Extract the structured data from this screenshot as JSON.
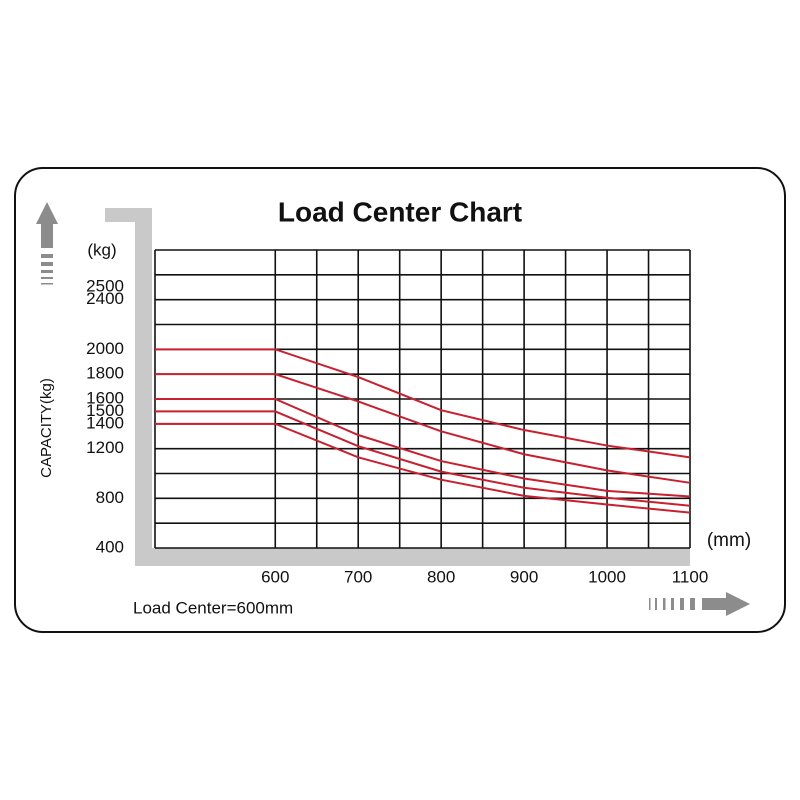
{
  "chart_data": {
    "type": "line",
    "title": "Load Center Chart",
    "y_label": "CAPACITY(kg)",
    "y_unit": "(kg)",
    "x_unit": "(mm)",
    "note": "Load Center=600mm",
    "x": [
      455,
      600,
      700,
      800,
      900,
      1000,
      1100
    ],
    "xlim": [
      455,
      1100
    ],
    "ylim": [
      400,
      2800
    ],
    "xticks": [
      600,
      700,
      800,
      900,
      1000,
      1100
    ],
    "yticks": [
      400,
      800,
      1200,
      1400,
      1500,
      1600,
      1800,
      2000,
      2400,
      2500
    ],
    "xgrid": [
      600,
      650,
      700,
      750,
      800,
      850,
      900,
      950,
      1000,
      1050,
      1100
    ],
    "ygrid": [
      400,
      600,
      800,
      1000,
      1200,
      1400,
      1600,
      1800,
      2000,
      2200,
      2400,
      2600,
      2800
    ],
    "series": [
      {
        "color": "#c8202e",
        "values": [
          2000,
          2000,
          1777,
          1510,
          1350,
          1225,
          1130
        ]
      },
      {
        "color": "#c8202e",
        "values": [
          1800,
          1800,
          1580,
          1340,
          1155,
          1025,
          925
        ]
      },
      {
        "color": "#c8202e",
        "values": [
          1600,
          1600,
          1310,
          1100,
          960,
          860,
          815
        ]
      },
      {
        "color": "#c8202e",
        "values": [
          1500,
          1500,
          1220,
          1015,
          885,
          805,
          740
        ]
      },
      {
        "color": "#c8202e",
        "values": [
          1400,
          1400,
          1130,
          950,
          820,
          750,
          685
        ]
      }
    ]
  }
}
